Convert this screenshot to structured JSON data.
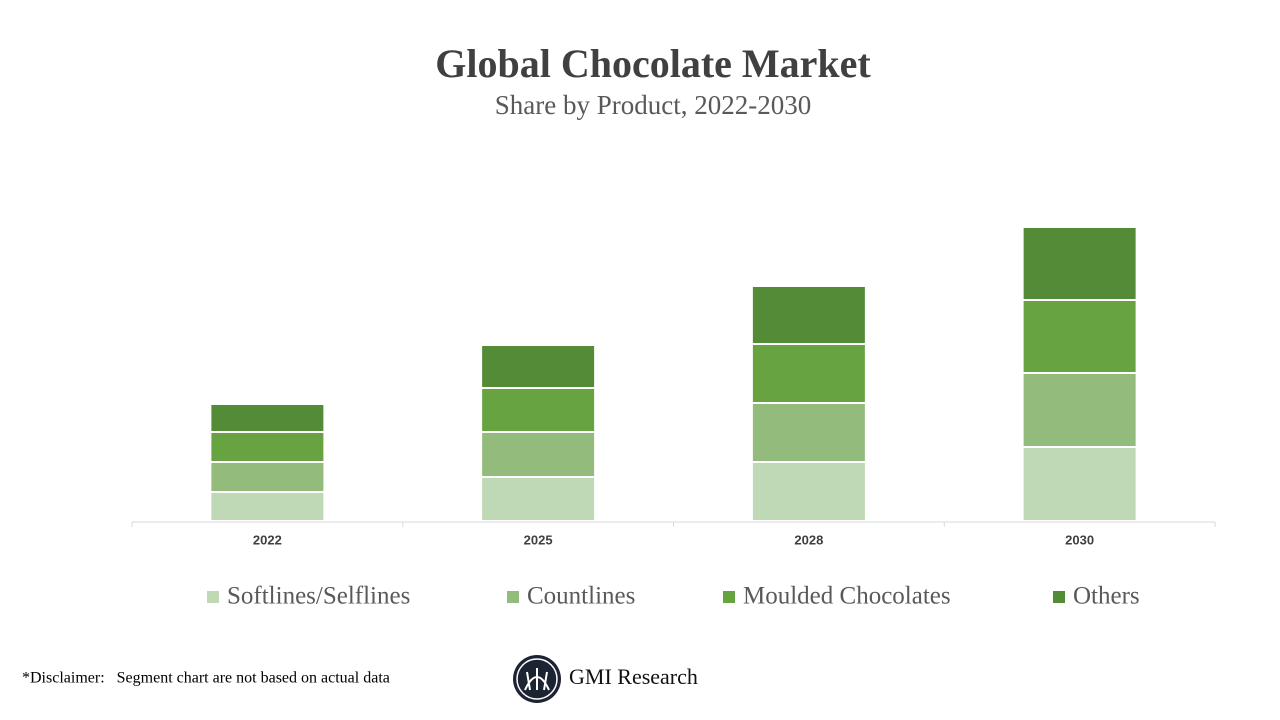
{
  "chart_data": {
    "type": "stacked_bar",
    "title": "Global Chocolate Market",
    "subtitle": "Share by Product, 2022-2030",
    "categories": [
      "2022",
      "2025",
      "2028",
      "2030"
    ],
    "series": [
      {
        "name": "Softlines/Selflines",
        "color": "#bfd8b5",
        "values": [
          29,
          44,
          59,
          74
        ]
      },
      {
        "name": "Countlines",
        "color": "#93bb7c",
        "values": [
          30,
          45,
          59,
          74
        ]
      },
      {
        "name": "Moulded Chocolates",
        "color": "#67a340",
        "values": [
          30,
          44,
          59,
          73
        ]
      },
      {
        "name": "Others",
        "color": "#548b37",
        "values": [
          28,
          43,
          58,
          73
        ]
      }
    ],
    "ylim": [
      0,
      300
    ]
  },
  "footer": {
    "disclaimer": "*Disclaimer:   Segment chart are not based on actual data",
    "brand": "GMI Research"
  }
}
